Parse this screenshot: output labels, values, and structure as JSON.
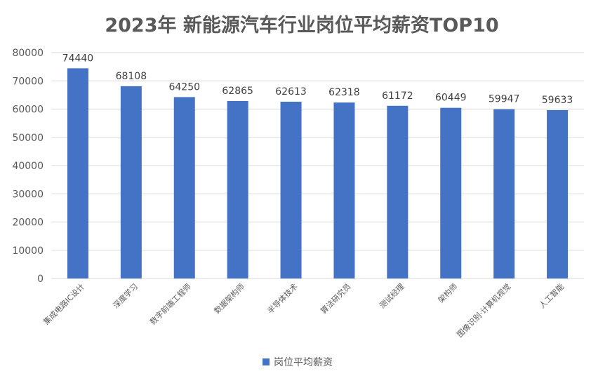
{
  "chart_data": {
    "type": "bar",
    "title": "2023年 新能源汽车行业岗位平均薪资TOP10",
    "categories": [
      "集成电路IC设计",
      "深度学习",
      "数字前端工程师",
      "数据架构师",
      "半导体技术",
      "算法研究员",
      "测试经理",
      "架构师",
      "图像识别·计算机视觉",
      "人工智能"
    ],
    "series": [
      {
        "name": "岗位平均薪资",
        "values": [
          74440,
          68108,
          64250,
          62865,
          62613,
          62318,
          61172,
          60449,
          59947,
          59633
        ],
        "color": "#4472c4"
      }
    ],
    "yticks": [
      "0",
      "10000",
      "20000",
      "30000",
      "40000",
      "50000",
      "60000",
      "70000",
      "80000"
    ],
    "ylim": [
      0,
      80000
    ],
    "grid": true,
    "legend_position": "bottom"
  }
}
